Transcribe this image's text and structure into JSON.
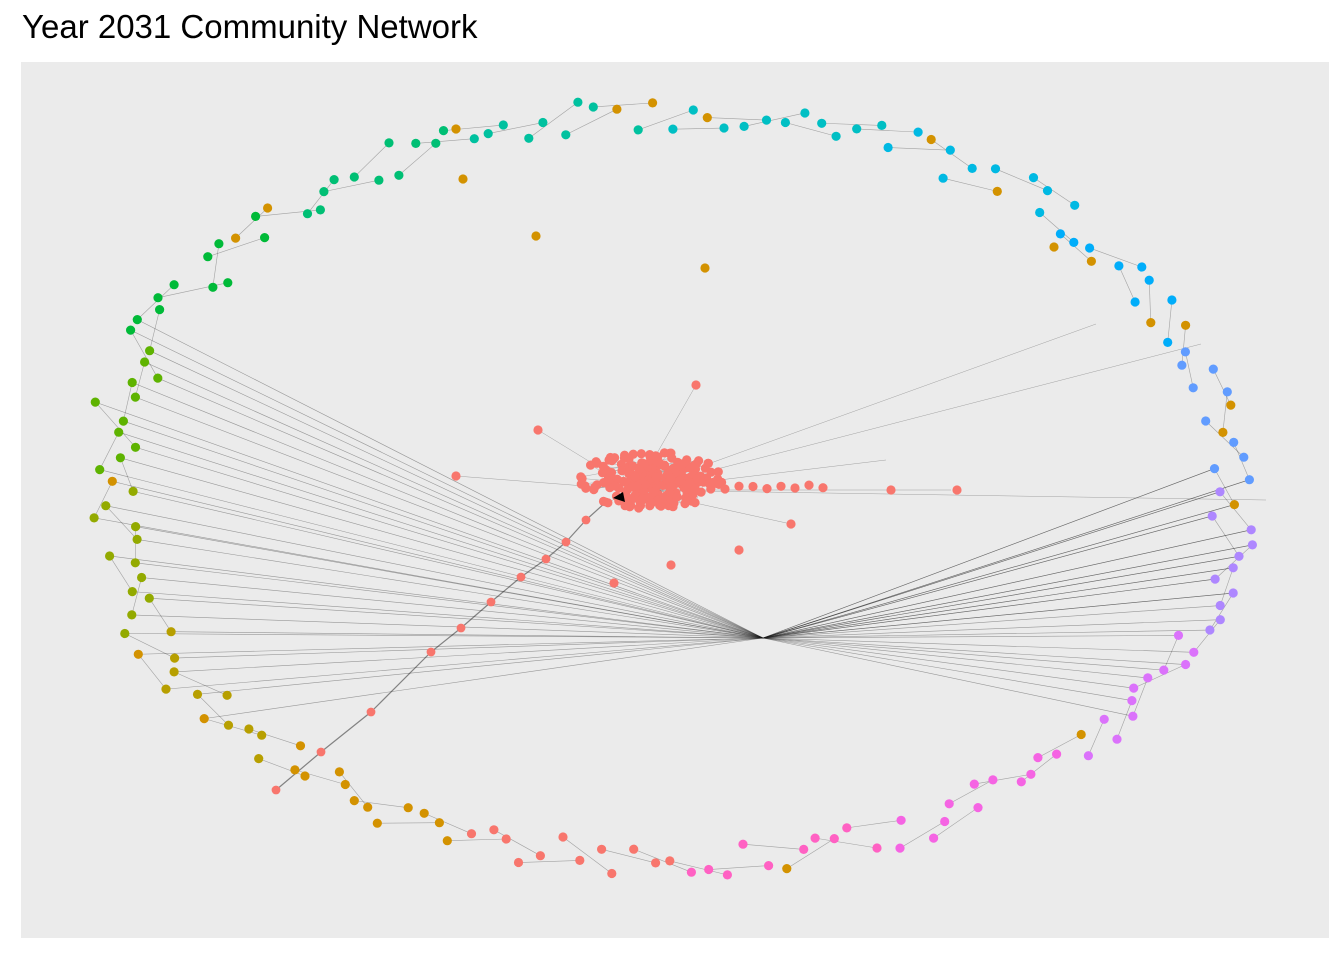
{
  "title": "Year 2031 Community Network",
  "colors": {
    "panel": "#ebebeb",
    "edge": "#1a1a1a",
    "central": "#f8766d",
    "hub": "#000000",
    "ring": [
      "#f8766d",
      "#d39200",
      "#b79f00",
      "#93aa00",
      "#5eb300",
      "#00ba38",
      "#00bf74",
      "#00c19f",
      "#00bfc4",
      "#00b9e3",
      "#00adfa",
      "#619cff",
      "#ae87ff",
      "#db72fb",
      "#f564e3",
      "#ff61c3"
    ]
  }
}
